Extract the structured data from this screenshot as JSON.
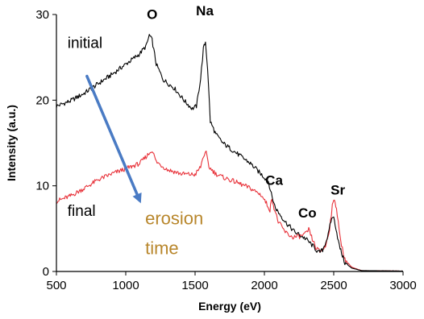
{
  "chart_data": {
    "type": "line",
    "xlabel": "Energy (eV)",
    "ylabel": "Intensity (a.u.)",
    "xlim": [
      500,
      3000
    ],
    "ylim": [
      0,
      30
    ],
    "x_ticks": [
      "500",
      "1000",
      "1500",
      "2000",
      "2500",
      "3000"
    ],
    "y_ticks": [
      "0",
      "10",
      "20",
      "30"
    ],
    "grid": false,
    "series": [
      {
        "name": "initial",
        "color": "#000000",
        "points": [
          [
            500,
            19.3
          ],
          [
            600,
            19.9
          ],
          [
            700,
            20.8
          ],
          [
            800,
            21.9
          ],
          [
            900,
            23.0
          ],
          [
            1000,
            24.2
          ],
          [
            1100,
            25.4
          ],
          [
            1150,
            26.4
          ],
          [
            1170,
            27.6
          ],
          [
            1190,
            27.0
          ],
          [
            1220,
            24.2
          ],
          [
            1270,
            22.4
          ],
          [
            1350,
            21.4
          ],
          [
            1430,
            19.8
          ],
          [
            1480,
            19.0
          ],
          [
            1510,
            19.3
          ],
          [
            1540,
            22.5
          ],
          [
            1560,
            26.0
          ],
          [
            1575,
            26.8
          ],
          [
            1590,
            23.8
          ],
          [
            1610,
            17.5
          ],
          [
            1650,
            16.0
          ],
          [
            1700,
            15.0
          ],
          [
            1800,
            13.8
          ],
          [
            1900,
            12.6
          ],
          [
            1980,
            11.3
          ],
          [
            2030,
            10.5
          ],
          [
            2050,
            9.0
          ],
          [
            2080,
            7.4
          ],
          [
            2150,
            5.8
          ],
          [
            2220,
            4.6
          ],
          [
            2300,
            3.8
          ],
          [
            2360,
            2.8
          ],
          [
            2390,
            2.2
          ],
          [
            2420,
            2.5
          ],
          [
            2460,
            4.2
          ],
          [
            2480,
            5.9
          ],
          [
            2495,
            6.5
          ],
          [
            2510,
            5.6
          ],
          [
            2540,
            3.0
          ],
          [
            2580,
            1.0
          ],
          [
            2630,
            0.4
          ],
          [
            2700,
            0.1
          ],
          [
            3000,
            0.05
          ]
        ]
      },
      {
        "name": "final",
        "color": "#e8323a",
        "points": [
          [
            500,
            8.2
          ],
          [
            600,
            8.8
          ],
          [
            700,
            9.7
          ],
          [
            800,
            10.7
          ],
          [
            900,
            11.4
          ],
          [
            1000,
            12.0
          ],
          [
            1100,
            12.6
          ],
          [
            1170,
            13.8
          ],
          [
            1190,
            14.2
          ],
          [
            1220,
            12.8
          ],
          [
            1300,
            11.9
          ],
          [
            1400,
            11.4
          ],
          [
            1500,
            11.3
          ],
          [
            1540,
            12.2
          ],
          [
            1560,
            13.5
          ],
          [
            1580,
            13.8
          ],
          [
            1600,
            12.2
          ],
          [
            1650,
            11.4
          ],
          [
            1700,
            11.0
          ],
          [
            1800,
            10.4
          ],
          [
            1900,
            9.7
          ],
          [
            1980,
            8.9
          ],
          [
            2020,
            7.8
          ],
          [
            2040,
            7.2
          ],
          [
            2055,
            8.6
          ],
          [
            2070,
            7.4
          ],
          [
            2100,
            5.8
          ],
          [
            2150,
            4.6
          ],
          [
            2200,
            4.0
          ],
          [
            2260,
            4.1
          ],
          [
            2300,
            4.4
          ],
          [
            2320,
            4.9
          ],
          [
            2340,
            4.0
          ],
          [
            2370,
            2.8
          ],
          [
            2400,
            2.3
          ],
          [
            2440,
            2.9
          ],
          [
            2470,
            5.0
          ],
          [
            2490,
            7.6
          ],
          [
            2505,
            8.5
          ],
          [
            2520,
            7.4
          ],
          [
            2545,
            4.0
          ],
          [
            2580,
            1.4
          ],
          [
            2630,
            0.5
          ],
          [
            2700,
            0.1
          ],
          [
            3000,
            0.05
          ]
        ]
      }
    ],
    "peak_labels": [
      {
        "text": "O",
        "x": 1190,
        "y": 29.5
      },
      {
        "text": "Na",
        "x": 1570,
        "y": 29.9
      },
      {
        "text": "Ca",
        "x": 2070,
        "y": 10.1
      },
      {
        "text": "Co",
        "x": 2310,
        "y": 6.3
      },
      {
        "text": "Sr",
        "x": 2530,
        "y": 9.0
      }
    ],
    "series_labels": [
      {
        "text": "initial",
        "x": 580,
        "y": 26.1
      },
      {
        "text": "final",
        "x": 580,
        "y": 6.5
      }
    ],
    "annotation": {
      "line1": "erosion",
      "line2": "time",
      "color": "#b8862b",
      "arrow": {
        "from": [
          720,
          22.8
        ],
        "to": [
          1100,
          8.3
        ],
        "color": "#4a7bc4"
      }
    }
  }
}
